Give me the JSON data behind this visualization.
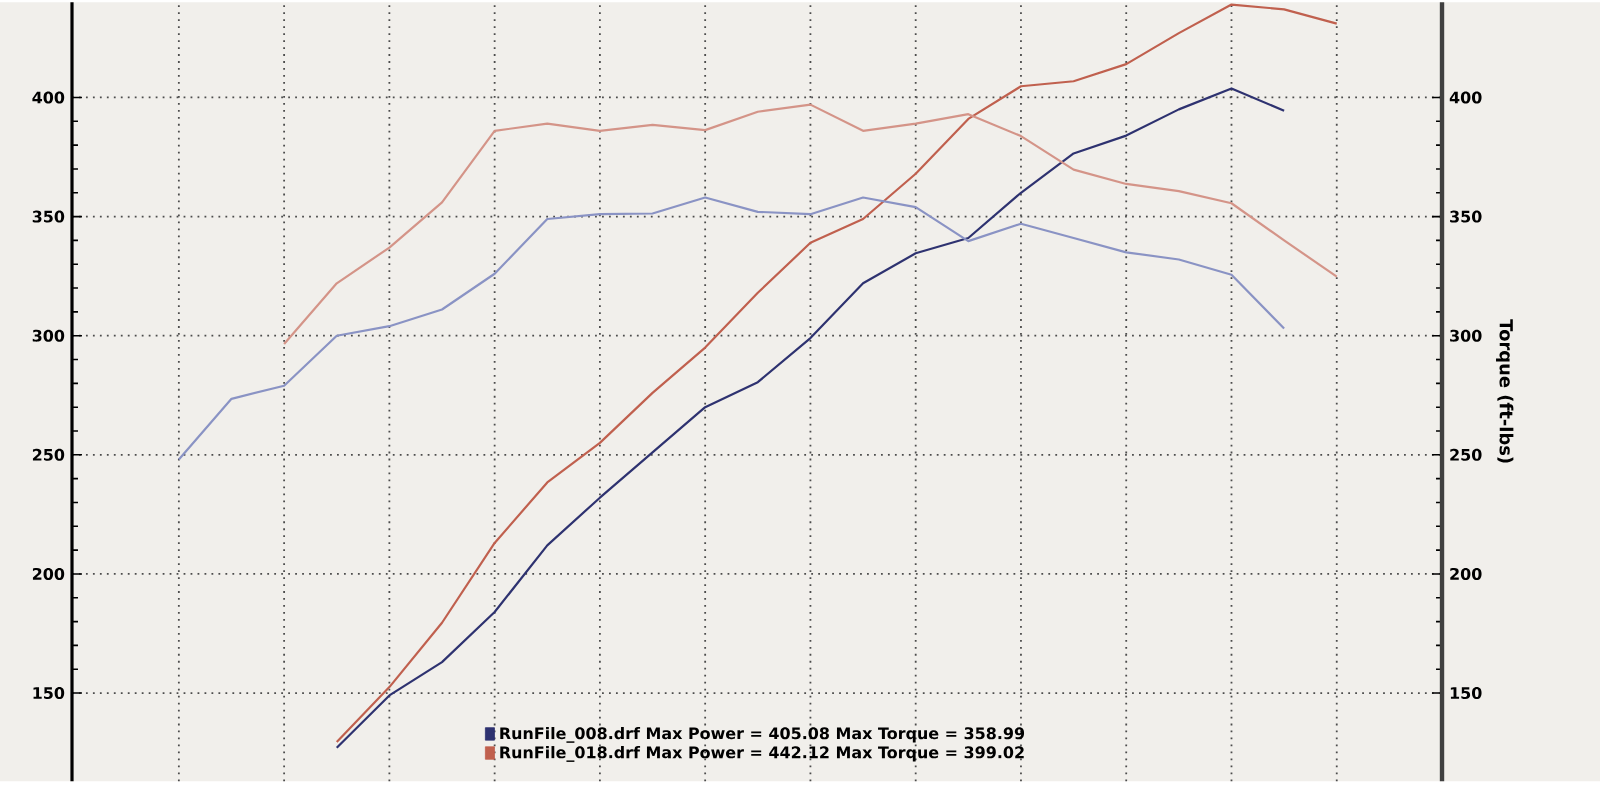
{
  "chart_data": {
    "type": "line",
    "y2label": "Torque (ft-lbs)",
    "categories": [
      null,
      null,
      null,
      null,
      null,
      null,
      null,
      null,
      null,
      null,
      null,
      null,
      null,
      null,
      null,
      null,
      null,
      null,
      null,
      null,
      null,
      null,
      null
    ],
    "series": [
      {
        "name": "RunFile_008.drf Max Power = 405.08     Max Torque = 358.99",
        "color": "#2e3270",
        "values": [
          null,
          null,
          null,
          127,
          149,
          163,
          184,
          212,
          232,
          251,
          270,
          280.5,
          299,
          322,
          334.6,
          341,
          360,
          376.5,
          384,
          395,
          403.8,
          394.4,
          null
        ]
      },
      {
        "name": "RunFile_018.drf Max Power = 442.12     Max Torque = 399.02",
        "color": "#c0604e",
        "values": [
          null,
          null,
          null,
          129.5,
          152.5,
          179.5,
          213,
          238.4,
          255,
          276,
          295,
          318,
          339,
          349,
          368,
          391,
          404.7,
          406.8,
          414,
          427,
          439,
          437,
          431
        ]
      },
      {
        "color": "#8a93c4",
        "values": [
          248,
          273.5,
          279,
          300,
          304,
          311,
          326,
          349,
          351,
          351.3,
          358,
          352,
          351,
          358,
          354,
          339.7,
          347,
          341,
          335,
          332,
          325.6,
          303,
          null
        ]
      },
      {
        "color": "#d49488",
        "values": [
          null,
          null,
          296.5,
          322,
          337,
          356,
          386,
          389,
          386,
          388.5,
          386.3,
          394,
          397,
          386,
          389,
          393,
          383.8,
          369.7,
          363.7,
          360.7,
          355.6,
          340,
          324.8
        ]
      }
    ],
    "ylim": [
      113,
      440
    ],
    "yticks": [
      150,
      200,
      250,
      300,
      350,
      400
    ],
    "y2lim": [
      113,
      440
    ],
    "y2ticks": [
      150,
      200,
      250,
      300,
      350,
      400
    ],
    "grid": true,
    "legend": "bottom",
    "marker": "none",
    "line_style": "solid"
  }
}
